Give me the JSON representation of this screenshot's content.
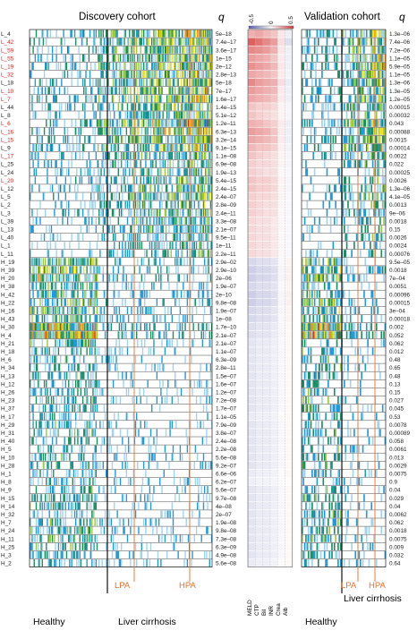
{
  "chart_data": {
    "type": "heatmap",
    "panels": {
      "discovery": {
        "title": "Discovery cohort"
      },
      "validation": {
        "title": "Validation cohort"
      }
    },
    "q_header": "q",
    "colorbar": {
      "ticks": [
        "-0.5",
        "0",
        "0.5"
      ],
      "min": -0.5,
      "max": 0.5
    },
    "clinical_vars": [
      "MELD",
      "CTP",
      "Bil",
      "INR",
      "Crea",
      "Alb"
    ],
    "group_labels": {
      "discovery": [
        "Healthy",
        "Liver cirrhosis"
      ],
      "validation": [
        "Healthy",
        "Liver cirrhosis"
      ]
    },
    "line_labels": [
      "LPA",
      "HPA"
    ],
    "colors": {
      "accent_lines": "#e8702c",
      "red_label": "#d42a20",
      "low": "#ffffff",
      "mid1": "#9fd3f0",
      "mid2": "#1e9ad6",
      "mid3": "#1a8f5e",
      "mid4": "#9cc93a",
      "high1": "#f3e11a",
      "high2": "#f28c1e",
      "high3": "#d2271c",
      "corr_neg": "#5b5bb0",
      "corr_pos": "#d43a3a"
    },
    "clusters": [
      {
        "name": "L_4",
        "red": false,
        "q_disc": "5e–18",
        "q_val": "1.3e–06",
        "level": 0.62,
        "corr": [
          0.2,
          0.22,
          0.18,
          0.15,
          0.06,
          -0.05
        ]
      },
      {
        "name": "L_42",
        "red": true,
        "q_disc": "7.4e–17",
        "q_val": "7.4e–06",
        "level": 0.6,
        "corr": [
          0.4,
          0.35,
          0.3,
          0.25,
          0.08,
          -0.1
        ]
      },
      {
        "name": "L_59",
        "red": true,
        "q_disc": "3.6e–17",
        "q_val": "7.2e–06",
        "level": 0.6,
        "corr": [
          0.3,
          0.28,
          0.25,
          0.2,
          0.06,
          -0.05
        ]
      },
      {
        "name": "L_55",
        "red": true,
        "q_disc": "1e–15",
        "q_val": "1.1e–05",
        "level": 0.58,
        "corr": [
          0.25,
          0.22,
          0.2,
          0.15,
          0.05,
          -0.05
        ]
      },
      {
        "name": "L_19",
        "red": true,
        "q_disc": "2e–12",
        "q_val": "5.9e–05",
        "level": 0.58,
        "corr": [
          0.28,
          0.25,
          0.22,
          0.18,
          0.06,
          -0.05
        ]
      },
      {
        "name": "L_32",
        "red": true,
        "q_disc": "2.8e–13",
        "q_val": "1.1e–05",
        "level": 0.58,
        "corr": [
          0.22,
          0.2,
          0.18,
          0.15,
          0.05,
          -0.04
        ]
      },
      {
        "name": "L_18",
        "red": false,
        "q_disc": "5e–18",
        "q_val": "1.3e–06",
        "level": 0.6,
        "corr": [
          0.3,
          0.25,
          0.22,
          0.2,
          0.08,
          -0.06
        ]
      },
      {
        "name": "L_10",
        "red": true,
        "q_disc": "7e–17",
        "q_val": "1.3e–05",
        "level": 0.58,
        "corr": [
          0.25,
          0.22,
          0.2,
          0.18,
          0.05,
          -0.05
        ]
      },
      {
        "name": "L_7",
        "red": true,
        "q_disc": "1.6e–17",
        "q_val": "1.2e–05",
        "level": 0.58,
        "corr": [
          0.22,
          0.2,
          0.18,
          0.15,
          0.05,
          -0.05
        ]
      },
      {
        "name": "L_44",
        "red": false,
        "q_disc": "1.4e–15",
        "q_val": "0.00015",
        "level": 0.5,
        "corr": [
          0.15,
          0.12,
          0.12,
          0.1,
          0.03,
          -0.03
        ]
      },
      {
        "name": "L_8",
        "red": false,
        "q_disc": "5.1e–12",
        "q_val": "0.00032",
        "level": 0.45,
        "corr": [
          0.15,
          0.12,
          0.1,
          0.08,
          0.03,
          -0.03
        ]
      },
      {
        "name": "L_6",
        "red": true,
        "q_disc": "1.2e–11",
        "q_val": "0.043",
        "level": 0.72,
        "corr": [
          0.2,
          0.18,
          0.15,
          0.12,
          0.05,
          -0.05
        ]
      },
      {
        "name": "L_16",
        "red": true,
        "q_disc": "6.3e–13",
        "q_val": "0.00088",
        "level": 0.62,
        "corr": [
          0.25,
          0.22,
          0.2,
          0.15,
          0.05,
          -0.05
        ]
      },
      {
        "name": "L_15",
        "red": true,
        "q_disc": "3.2e–14",
        "q_val": "0.0015",
        "level": 0.6,
        "corr": [
          0.22,
          0.2,
          0.18,
          0.15,
          0.05,
          -0.05
        ]
      },
      {
        "name": "L_9",
        "red": false,
        "q_disc": "9.1e–15",
        "q_val": "0.00014",
        "level": 0.62,
        "corr": [
          0.18,
          0.15,
          0.15,
          0.12,
          0.04,
          -0.04
        ]
      },
      {
        "name": "L_17",
        "red": true,
        "q_disc": "1.1e–08",
        "q_val": "0.0022",
        "level": 0.45,
        "corr": [
          0.15,
          0.12,
          0.1,
          0.08,
          0.03,
          -0.03
        ]
      },
      {
        "name": "L_25",
        "red": false,
        "q_disc": "6.9e–08",
        "q_val": "0.022",
        "level": 0.42,
        "corr": [
          0.12,
          0.1,
          0.1,
          0.08,
          0.03,
          -0.03
        ]
      },
      {
        "name": "L_24",
        "red": false,
        "q_disc": "1.9e–13",
        "q_val": "0.00025",
        "level": 0.4,
        "corr": [
          0.12,
          0.1,
          0.08,
          0.08,
          0.02,
          -0.02
        ]
      },
      {
        "name": "L_20",
        "red": true,
        "q_disc": "5.4e–15",
        "q_val": "0.0026",
        "level": 0.4,
        "corr": [
          0.15,
          0.12,
          0.12,
          0.1,
          0.03,
          -0.03
        ]
      },
      {
        "name": "L_12",
        "red": false,
        "q_disc": "2.4e–15",
        "q_val": "1.3e–06",
        "level": 0.45,
        "corr": [
          0.15,
          0.12,
          0.12,
          0.1,
          0.03,
          -0.03
        ]
      },
      {
        "name": "L_5",
        "red": false,
        "q_disc": "2.4e–07",
        "q_val": "4.1e–05",
        "level": 0.48,
        "corr": [
          0.12,
          0.1,
          0.1,
          0.08,
          0.03,
          -0.02
        ]
      },
      {
        "name": "L_2",
        "red": false,
        "q_disc": "2.8e–09",
        "q_val": "0.0013",
        "level": 0.42,
        "corr": [
          0.12,
          0.1,
          0.08,
          0.08,
          0.02,
          -0.02
        ]
      },
      {
        "name": "L_3",
        "red": false,
        "q_disc": "2.4e–11",
        "q_val": "9e–06",
        "level": 0.42,
        "corr": [
          0.12,
          0.1,
          0.08,
          0.08,
          0.02,
          -0.02
        ]
      },
      {
        "name": "L_39",
        "red": false,
        "q_disc": "3.3e–08",
        "q_val": "0.0018",
        "level": 0.38,
        "corr": [
          0.1,
          0.08,
          0.08,
          0.06,
          0.02,
          -0.02
        ]
      },
      {
        "name": "L_13",
        "red": false,
        "q_disc": "2.1e–07",
        "q_val": "0.15",
        "level": 0.35,
        "corr": [
          0.1,
          0.08,
          0.08,
          0.06,
          0.02,
          -0.02
        ]
      },
      {
        "name": "L_40",
        "red": false,
        "q_disc": "9.5e–11",
        "q_val": "0.0026",
        "level": 0.35,
        "corr": [
          0.1,
          0.08,
          0.08,
          0.06,
          0.02,
          -0.02
        ]
      },
      {
        "name": "L_1",
        "red": false,
        "q_disc": "1e–11",
        "q_val": "0.0024",
        "level": 0.35,
        "corr": [
          0.1,
          0.08,
          0.08,
          0.06,
          0.02,
          -0.02
        ]
      },
      {
        "name": "L_11",
        "red": false,
        "q_disc": "2.2e–11",
        "q_val": "0.00076",
        "level": 0.35,
        "corr": [
          0.1,
          0.08,
          0.08,
          0.06,
          0.02,
          -0.02
        ]
      },
      {
        "name": "H_19",
        "red": false,
        "q_disc": "2.9e–02",
        "q_val": "9.5e–05",
        "level": 0.52,
        "corr": [
          -0.12,
          -0.1,
          -0.1,
          -0.08,
          -0.02,
          0.03
        ]
      },
      {
        "name": "H_39",
        "red": false,
        "q_disc": "2.9e–10",
        "q_val": "0.0018",
        "level": 0.48,
        "corr": [
          -0.15,
          -0.12,
          -0.12,
          -0.1,
          -0.03,
          0.04
        ]
      },
      {
        "name": "H_20",
        "red": false,
        "q_disc": "2e–06",
        "q_val": "7e–04",
        "level": 0.55,
        "corr": [
          -0.15,
          -0.12,
          -0.12,
          -0.1,
          -0.03,
          0.04
        ]
      },
      {
        "name": "H_38",
        "red": false,
        "q_disc": "1.9e–07",
        "q_val": "0.0051",
        "level": 0.35,
        "corr": [
          -0.12,
          -0.1,
          -0.1,
          -0.08,
          -0.02,
          0.03
        ]
      },
      {
        "name": "H_42",
        "red": false,
        "q_disc": "2e–10",
        "q_val": "0.00096",
        "level": 0.38,
        "corr": [
          -0.15,
          -0.12,
          -0.12,
          -0.1,
          -0.03,
          0.04
        ]
      },
      {
        "name": "H_22",
        "red": false,
        "q_disc": "9.8e–08",
        "q_val": "0.00015",
        "level": 0.45,
        "corr": [
          -0.15,
          -0.12,
          -0.12,
          -0.1,
          -0.03,
          0.04
        ]
      },
      {
        "name": "H_16",
        "red": false,
        "q_disc": "1.9e–07",
        "q_val": "3e–04",
        "level": 0.45,
        "corr": [
          -0.12,
          -0.1,
          -0.1,
          -0.08,
          -0.02,
          0.03
        ]
      },
      {
        "name": "H_43",
        "red": false,
        "q_disc": "1e–08",
        "q_val": "0.00018",
        "level": 0.4,
        "corr": [
          -0.12,
          -0.1,
          -0.1,
          -0.08,
          -0.02,
          0.03
        ]
      },
      {
        "name": "H_30",
        "red": false,
        "q_disc": "1.7e–10",
        "q_val": "0.002",
        "level": 0.72,
        "corr": [
          -0.1,
          -0.08,
          -0.08,
          -0.06,
          -0.02,
          0.02
        ]
      },
      {
        "name": "H_4",
        "red": false,
        "q_disc": "2.1e–07",
        "q_val": "0.052",
        "level": 0.75,
        "corr": [
          -0.1,
          -0.08,
          -0.08,
          -0.06,
          -0.02,
          0.02
        ]
      },
      {
        "name": "H_21",
        "red": false,
        "q_disc": "2.1e–07",
        "q_val": "0.062",
        "level": 0.3,
        "corr": [
          -0.08,
          -0.06,
          -0.06,
          -0.05,
          -0.02,
          0.02
        ]
      },
      {
        "name": "H_18",
        "red": false,
        "q_disc": "1.1e–07",
        "q_val": "0.012",
        "level": 0.3,
        "corr": [
          -0.08,
          -0.06,
          -0.06,
          -0.05,
          -0.02,
          0.02
        ]
      },
      {
        "name": "H_6",
        "red": false,
        "q_disc": "6.3e–09",
        "q_val": "0.48",
        "level": 0.28,
        "corr": [
          -0.08,
          -0.06,
          -0.06,
          -0.05,
          -0.02,
          0.02
        ]
      },
      {
        "name": "H_34",
        "red": false,
        "q_disc": "2.8e–11",
        "q_val": "0.65",
        "level": 0.28,
        "corr": [
          -0.08,
          -0.06,
          -0.06,
          -0.05,
          -0.02,
          0.02
        ]
      },
      {
        "name": "H_13",
        "red": false,
        "q_disc": "1.5e–07",
        "q_val": "0.48",
        "level": 0.28,
        "corr": [
          -0.08,
          -0.06,
          -0.06,
          -0.05,
          -0.02,
          0.02
        ]
      },
      {
        "name": "H_12",
        "red": false,
        "q_disc": "1.6e–07",
        "q_val": "0.13",
        "level": 0.28,
        "corr": [
          -0.08,
          -0.06,
          -0.06,
          -0.05,
          -0.02,
          0.02
        ]
      },
      {
        "name": "H_26",
        "red": false,
        "q_disc": "1.2e–07",
        "q_val": "0.15",
        "level": 0.28,
        "corr": [
          -0.08,
          -0.06,
          -0.06,
          -0.05,
          -0.02,
          0.02
        ]
      },
      {
        "name": "H_23",
        "red": false,
        "q_disc": "7.2e–08",
        "q_val": "0.027",
        "level": 0.3,
        "corr": [
          -0.08,
          -0.06,
          -0.06,
          -0.05,
          -0.02,
          0.02
        ]
      },
      {
        "name": "H_37",
        "red": false,
        "q_disc": "1.7e–07",
        "q_val": "0.045",
        "level": 0.28,
        "corr": [
          -0.08,
          -0.06,
          -0.06,
          -0.05,
          -0.02,
          0.02
        ]
      },
      {
        "name": "H_17",
        "red": false,
        "q_disc": "1.1e–05",
        "q_val": "0.53",
        "level": 0.25,
        "corr": [
          -0.06,
          -0.05,
          -0.05,
          -0.04,
          -0.01,
          0.02
        ]
      },
      {
        "name": "H_29",
        "red": false,
        "q_disc": "7.9e–09",
        "q_val": "0.0078",
        "level": 0.3,
        "corr": [
          -0.08,
          -0.06,
          -0.06,
          -0.05,
          -0.02,
          0.02
        ]
      },
      {
        "name": "H_31",
        "red": false,
        "q_disc": "3.8e–07",
        "q_val": "0.00089",
        "level": 0.32,
        "corr": [
          -0.08,
          -0.06,
          -0.06,
          -0.05,
          -0.02,
          0.02
        ]
      },
      {
        "name": "H_40",
        "red": false,
        "q_disc": "2.4e–08",
        "q_val": "0.058",
        "level": 0.28,
        "corr": [
          -0.08,
          -0.06,
          -0.06,
          -0.05,
          -0.02,
          0.02
        ]
      },
      {
        "name": "H_5",
        "red": false,
        "q_disc": "2.2e–08",
        "q_val": "0.0061",
        "level": 0.3,
        "corr": [
          -0.08,
          -0.06,
          -0.06,
          -0.05,
          -0.02,
          0.02
        ]
      },
      {
        "name": "H_10",
        "red": false,
        "q_disc": "5.6e–08",
        "q_val": "0.013",
        "level": 0.3,
        "corr": [
          -0.08,
          -0.06,
          -0.06,
          -0.05,
          -0.02,
          0.02
        ]
      },
      {
        "name": "H_28",
        "red": false,
        "q_disc": "9.2e–07",
        "q_val": "0.0029",
        "level": 0.3,
        "corr": [
          -0.08,
          -0.06,
          -0.06,
          -0.05,
          -0.02,
          0.02
        ]
      },
      {
        "name": "H_1",
        "red": false,
        "q_disc": "6.6e–06",
        "q_val": "0.0075",
        "level": 0.25,
        "corr": [
          -0.06,
          -0.05,
          -0.05,
          -0.04,
          -0.01,
          0.02
        ]
      },
      {
        "name": "H_8",
        "red": false,
        "q_disc": "6.2e–07",
        "q_val": "0.9",
        "level": 0.22,
        "corr": [
          -0.05,
          -0.04,
          -0.04,
          -0.03,
          -0.01,
          0.01
        ]
      },
      {
        "name": "H_9",
        "red": false,
        "q_disc": "5.6e–07",
        "q_val": "0.04",
        "level": 0.28,
        "corr": [
          -0.08,
          -0.06,
          -0.06,
          -0.05,
          -0.02,
          0.02
        ]
      },
      {
        "name": "H_15",
        "red": false,
        "q_disc": "9.7e–08",
        "q_val": "0.029",
        "level": 0.3,
        "corr": [
          -0.08,
          -0.06,
          -0.06,
          -0.05,
          -0.02,
          0.02
        ]
      },
      {
        "name": "H_14",
        "red": false,
        "q_disc": "4e–08",
        "q_val": "0.04",
        "level": 0.3,
        "corr": [
          -0.08,
          -0.06,
          -0.06,
          -0.05,
          -0.02,
          0.02
        ]
      },
      {
        "name": "H_32",
        "red": false,
        "q_disc": "2e–07",
        "q_val": "0.0062",
        "level": 0.3,
        "corr": [
          -0.08,
          -0.06,
          -0.06,
          -0.05,
          -0.02,
          0.02
        ]
      },
      {
        "name": "H_7",
        "red": false,
        "q_disc": "1.9e–08",
        "q_val": "0.062",
        "level": 0.35,
        "corr": [
          -0.08,
          -0.06,
          -0.06,
          -0.05,
          -0.02,
          0.02
        ]
      },
      {
        "name": "H_24",
        "red": false,
        "q_disc": "9.8e–08",
        "q_val": "0.0018",
        "level": 0.38,
        "corr": [
          -0.08,
          -0.06,
          -0.06,
          -0.05,
          -0.02,
          0.02
        ]
      },
      {
        "name": "H_11",
        "red": false,
        "q_disc": "7.3e–08",
        "q_val": "0.0075",
        "level": 0.35,
        "corr": [
          -0.08,
          -0.06,
          -0.06,
          -0.05,
          -0.02,
          0.02
        ]
      },
      {
        "name": "H_25",
        "red": false,
        "q_disc": "6.3e–09",
        "q_val": "0.009",
        "level": 0.32,
        "corr": [
          -0.08,
          -0.06,
          -0.06,
          -0.05,
          -0.02,
          0.02
        ]
      },
      {
        "name": "H_3",
        "red": false,
        "q_disc": "4.9e–08",
        "q_val": "0.032",
        "level": 0.28,
        "corr": [
          -0.08,
          -0.06,
          -0.06,
          -0.05,
          -0.02,
          0.02
        ]
      },
      {
        "name": "H_2",
        "red": false,
        "q_disc": "5.6e–08",
        "q_val": "0.64",
        "level": 0.25,
        "corr": [
          -0.06,
          -0.05,
          -0.05,
          -0.04,
          -0.01,
          0.02
        ]
      }
    ]
  }
}
